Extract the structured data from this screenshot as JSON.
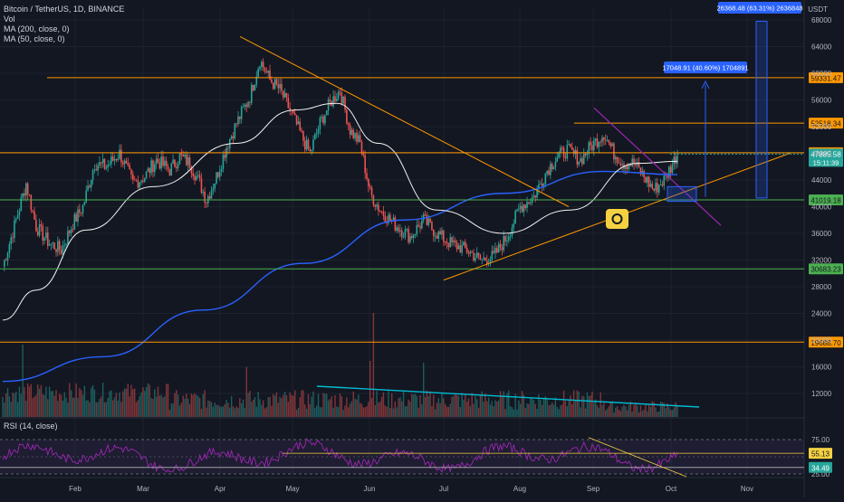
{
  "header": {
    "symbol": "Bitcoin / TetherUS, 1D, BINANCE",
    "vol": "Vol",
    "ma200": "MA (200, close, 0)",
    "ma50": "MA (50, close, 0)"
  },
  "rsi": {
    "title": "RSI (14, close)",
    "value": "55.13",
    "level_low": "34.49",
    "y_ticks": [
      "75.00",
      "25.00"
    ]
  },
  "axis": {
    "unit": "USDT"
  },
  "colors": {
    "up": "#26a69a",
    "down": "#ef5350",
    "ma200": "#2962ff",
    "ma50": "#f0f0f0",
    "orange": "#ff9800",
    "green": "#4caf50",
    "purple": "#9c27b0",
    "cyan": "#00bcd4",
    "yellow": "#f5d142"
  },
  "chart_data": {
    "type": "candlestick",
    "y_ticks": [
      68000,
      64000,
      60000,
      56000,
      52000,
      48000,
      44000,
      40000,
      36000,
      32000,
      28000,
      24000,
      20000,
      16000,
      12000
    ],
    "ylim": [
      10700,
      69500
    ],
    "x_ticks": [
      "Feb",
      "Mar",
      "Apr",
      "May",
      "Jun",
      "Jul",
      "Aug",
      "Sep",
      "Oct",
      "Nov"
    ],
    "horizontal_levels": [
      {
        "label": "59331.47",
        "value": 59331.47,
        "color": "orange"
      },
      {
        "label": "52518.34",
        "value": 52518.34,
        "color": "orange"
      },
      {
        "label": "48080.64",
        "value": 48080.64,
        "color": "orange"
      },
      {
        "label": "41019.18",
        "value": 41019.18,
        "color": "green"
      },
      {
        "label": "30683.23",
        "value": 30683.23,
        "color": "green"
      },
      {
        "label": "19688.70",
        "value": 19688.7,
        "color": "orange"
      }
    ],
    "last_price": {
      "value": 47885.58,
      "label": "47885.58",
      "countdown": "15:11:39"
    },
    "measures": [
      {
        "label": "26368.48 (63.31%) 2636848"
      },
      {
        "label": "17048.91 (40.60%) 1704891"
      }
    ],
    "rsi_levels": [
      {
        "label": "55.13",
        "value": 55.13
      },
      {
        "label": "34.49",
        "value": 34.49
      }
    ]
  }
}
